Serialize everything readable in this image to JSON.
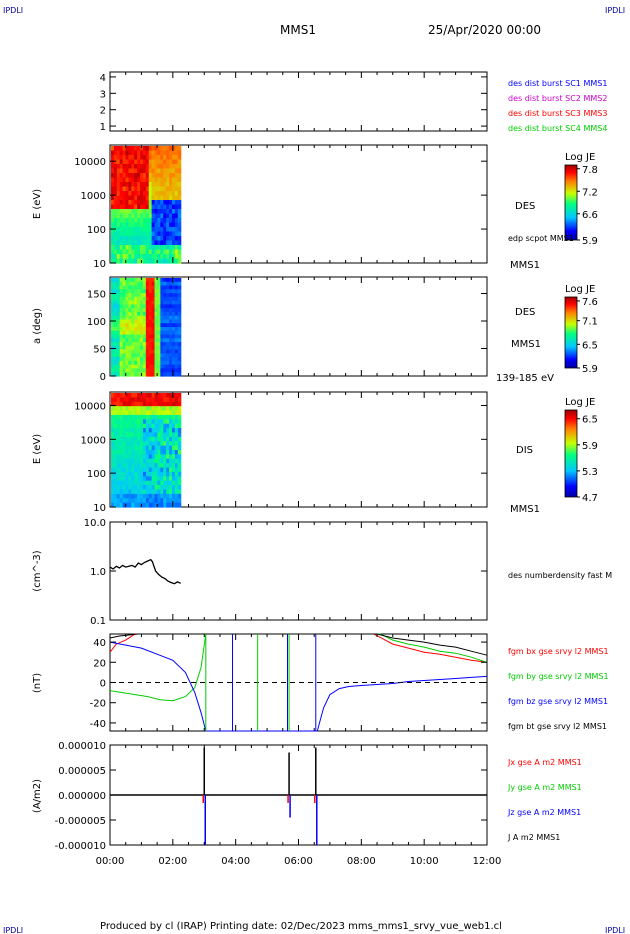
{
  "header": {
    "corner_label": "IPDLI",
    "title": "MMS1",
    "datetime": "25/Apr/2020 00:00"
  },
  "footer": {
    "text": "Produced by cl (IRAP)   Printing date: 02/Dec/2023   mms_mms1_srvy_vue_web1.cl"
  },
  "colors": {
    "mms1": "#0000ff",
    "mms2": "#cc00cc",
    "mms3": "#ff0000",
    "mms4": "#00cc00"
  },
  "chart_data": [
    {
      "id": "panel1",
      "type": "line",
      "yticks": [
        "1",
        "2",
        "3",
        "4"
      ],
      "ylim": [
        0.7,
        4.3
      ],
      "legend": [
        {
          "name": "des dist burst SC1 MMS1",
          "color": "#0000ff"
        },
        {
          "name": "des dist burst SC2 MMS2",
          "color": "#cc00cc"
        },
        {
          "name": "des dist burst SC3 MMS3",
          "color": "#ff0000"
        },
        {
          "name": "des dist burst SC4 MMS4",
          "color": "#00cc00"
        }
      ],
      "series": []
    },
    {
      "id": "panel2",
      "type": "heatmap",
      "ylabel": "E (eV)",
      "yscale": "log",
      "ylim": [
        10,
        30000
      ],
      "yticks": [
        "10",
        "100",
        "1000",
        "10000"
      ],
      "x_extent_hours": [
        0,
        2.25
      ],
      "colorbar": {
        "title": "Log JE",
        "ticks": [
          "5.9",
          "6.6",
          "7.2",
          "7.8"
        ],
        "range": [
          5.9,
          7.9
        ]
      },
      "labels": [
        "DES",
        "edp scpot MMS1",
        "MMS1"
      ]
    },
    {
      "id": "panel3",
      "type": "heatmap",
      "ylabel": "a (deg)",
      "ylim": [
        0,
        180
      ],
      "yticks": [
        "0",
        "50",
        "100",
        "150"
      ],
      "x_extent_hours": [
        0,
        2.25
      ],
      "colorbar": {
        "title": "Log JE",
        "ticks": [
          "5.9",
          "6.5",
          "7.1",
          "7.6"
        ],
        "range": [
          5.9,
          7.7
        ]
      },
      "labels": [
        "DES",
        "MMS1",
        "139-185 eV"
      ]
    },
    {
      "id": "panel4",
      "type": "heatmap",
      "ylabel": "E (eV)",
      "yscale": "log",
      "ylim": [
        10,
        25000
      ],
      "yticks": [
        "10",
        "100",
        "1000",
        "10000"
      ],
      "x_extent_hours": [
        0,
        2.25
      ],
      "colorbar": {
        "title": "Log JE",
        "ticks": [
          "4.7",
          "5.3",
          "5.9",
          "6.5"
        ],
        "range": [
          4.7,
          6.7
        ]
      },
      "labels": [
        "DIS",
        "MMS1"
      ]
    },
    {
      "id": "panel5",
      "type": "line",
      "ylabel": "(cm^-3)",
      "yscale": "log",
      "ylim": [
        0.1,
        10
      ],
      "yticks": [
        "0.1",
        "1.0",
        "10.0"
      ],
      "legend": [
        {
          "name": "des numberdensity fast M",
          "color": "#000000"
        }
      ],
      "series": [
        {
          "name": "des numberdensity fast M",
          "color": "#000000",
          "x": [
            0.0,
            0.1,
            0.2,
            0.3,
            0.4,
            0.5,
            0.6,
            0.7,
            0.8,
            0.9,
            1.0,
            1.1,
            1.2,
            1.3,
            1.35,
            1.45,
            1.55,
            1.65,
            1.75,
            1.85,
            1.95,
            2.05,
            2.15,
            2.25
          ],
          "y": [
            1.2,
            1.1,
            1.25,
            1.15,
            1.3,
            1.2,
            1.25,
            1.3,
            1.2,
            1.45,
            1.35,
            1.5,
            1.6,
            1.7,
            1.55,
            1.0,
            0.85,
            0.75,
            0.7,
            0.62,
            0.58,
            0.55,
            0.6,
            0.56
          ]
        }
      ]
    },
    {
      "id": "panel6",
      "type": "line",
      "ylabel": "(nT)",
      "ylim": [
        -48,
        48
      ],
      "yticks": [
        "-40",
        "-20",
        "0",
        "20",
        "40"
      ],
      "legend": [
        {
          "name": "fgm bx gse srvy l2 MMS1",
          "color": "#ff0000"
        },
        {
          "name": "fgm by gse srvy l2 MMS1",
          "color": "#00cc00"
        },
        {
          "name": "fgm bz gse srvy l2 MMS1",
          "color": "#0000ff"
        },
        {
          "name": "fgm bt gse srvy l2 MMS1",
          "color": "#000000"
        }
      ],
      "series": [
        {
          "name": "fgm bx gse srvy l2 MMS1",
          "color": "#ff0000",
          "x": [
            0.0,
            0.2,
            0.5,
            0.8,
            8.4,
            9.0,
            9.5,
            10.0,
            10.5,
            11.0,
            11.5,
            12.0
          ],
          "y": [
            30,
            38,
            42,
            48,
            48,
            38,
            34,
            30,
            28,
            25,
            22,
            20
          ]
        },
        {
          "name": "fgm by gse srvy l2 MMS1",
          "color": "#00cc00",
          "x": [
            0.0,
            0.4,
            0.8,
            1.2,
            1.6,
            2.0,
            2.4,
            2.7,
            2.9,
            3.05,
            8.6,
            9.0,
            9.5,
            10.0,
            10.5,
            11.0,
            11.5,
            12.0
          ],
          "y": [
            -8,
            -10,
            -12,
            -14,
            -17,
            -18,
            -14,
            -5,
            15,
            48,
            48,
            42,
            38,
            35,
            31,
            29,
            25,
            20
          ]
        },
        {
          "name": "fgm bz gse srvy l2 MMS1",
          "color": "#0000ff",
          "x": [
            0.0,
            0.5,
            1.0,
            1.5,
            2.0,
            2.4,
            2.7,
            2.9,
            3.05,
            6.6,
            6.8,
            7.0,
            7.3,
            7.6,
            8.0,
            8.5,
            9.0,
            9.5,
            10.0,
            10.5,
            11.0,
            11.5,
            12.0
          ],
          "y": [
            40,
            37,
            34,
            28,
            22,
            10,
            -10,
            -30,
            -48,
            -48,
            -25,
            -12,
            -6,
            -4,
            -3,
            -2,
            -1,
            1,
            2,
            3,
            4,
            5,
            6
          ]
        },
        {
          "name": "fgm bt gse srvy l2 MMS1",
          "color": "#000000",
          "x": [
            0.0,
            0.3,
            0.6,
            0.9,
            8.5,
            9.0,
            9.5,
            10.0,
            10.5,
            11.0,
            11.5,
            12.0
          ],
          "y": [
            44,
            46,
            47,
            48,
            48,
            44,
            42,
            40,
            37,
            35,
            31,
            27
          ]
        }
      ],
      "dashed_zero": true
    },
    {
      "id": "panel7",
      "type": "line",
      "ylabel": "(A/m2)",
      "ylim": [
        -1e-05,
        1e-05
      ],
      "yticks": [
        "-0.000010",
        "-0.000005",
        "0.000000",
        "0.000005",
        "0.000010"
      ],
      "xticks": [
        "00:00",
        "02:00",
        "04:00",
        "06:00",
        "08:00",
        "10:00",
        "12:00"
      ],
      "xlim_hours": [
        0,
        12
      ],
      "legend": [
        {
          "name": "Jx gse A m2 MMS1",
          "color": "#ff0000"
        },
        {
          "name": "Jy gse A m2 MMS1",
          "color": "#00cc00"
        },
        {
          "name": "Jz gse A m2 MMS1",
          "color": "#0000ff"
        },
        {
          "name": "J A m2 MMS1",
          "color": "#000000"
        }
      ],
      "spikes": [
        {
          "x": 3.0,
          "top": 9.5e-06,
          "bottom": -1e-05
        },
        {
          "x": 5.7,
          "top": 8.5e-06,
          "bottom": -4.5e-06
        },
        {
          "x": 6.55,
          "top": 9.5e-06,
          "bottom": -1e-05
        }
      ]
    }
  ]
}
